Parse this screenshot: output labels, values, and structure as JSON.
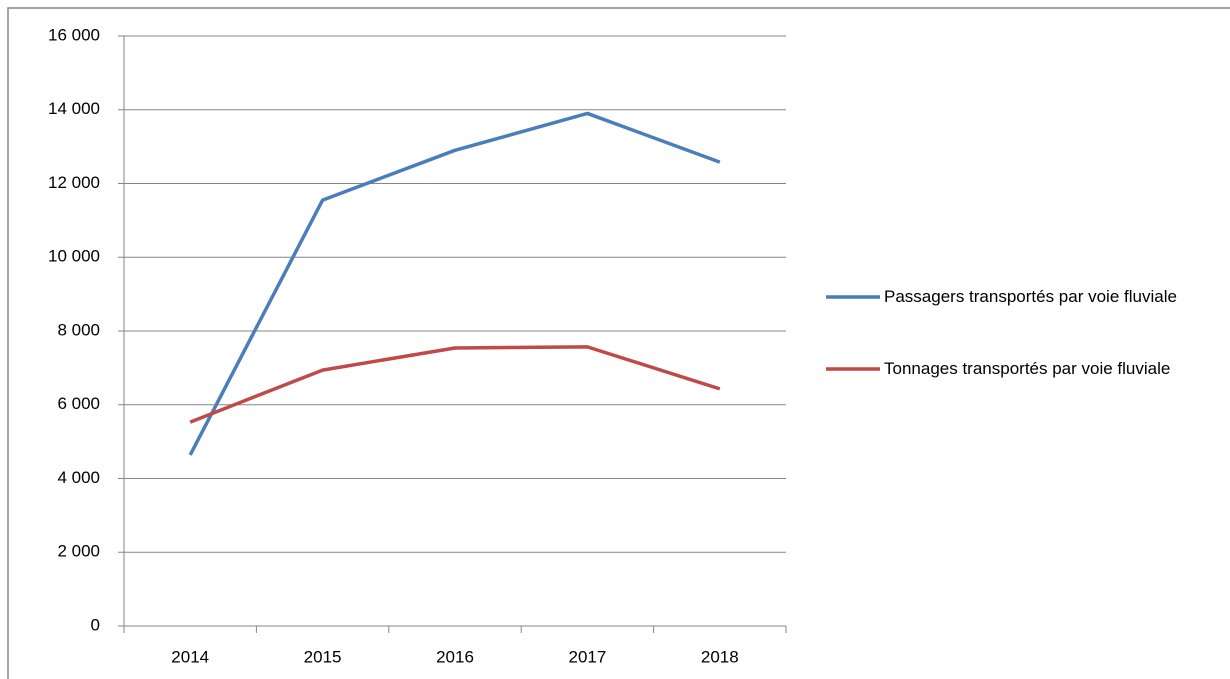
{
  "chart_data": {
    "type": "line",
    "categories": [
      "2014",
      "2015",
      "2016",
      "2017",
      "2018"
    ],
    "series": [
      {
        "name": "Passagers transportés par voie fluviale",
        "color": "#4a7ebb",
        "values": [
          4640,
          11550,
          12900,
          13900,
          12580
        ]
      },
      {
        "name": "Tonnages transportés par voie fluviale",
        "color": "#be4b48",
        "values": [
          5530,
          6940,
          7540,
          7570,
          6430
        ]
      }
    ],
    "ylim": [
      0,
      16000
    ],
    "yticks": [
      0,
      {
        "value": 2000,
        "label": "2 000"
      },
      {
        "value": 4000,
        "label": "4 000"
      },
      {
        "value": 6000,
        "label": "6 000"
      },
      {
        "value": 8000,
        "label": "8 000"
      },
      {
        "value": 10000,
        "label": "10 000"
      },
      {
        "value": 12000,
        "label": "12 000"
      },
      {
        "value": 14000,
        "label": "14 000"
      },
      {
        "value": 16000,
        "label": "16 000"
      }
    ],
    "grid": true,
    "legend": "right"
  }
}
